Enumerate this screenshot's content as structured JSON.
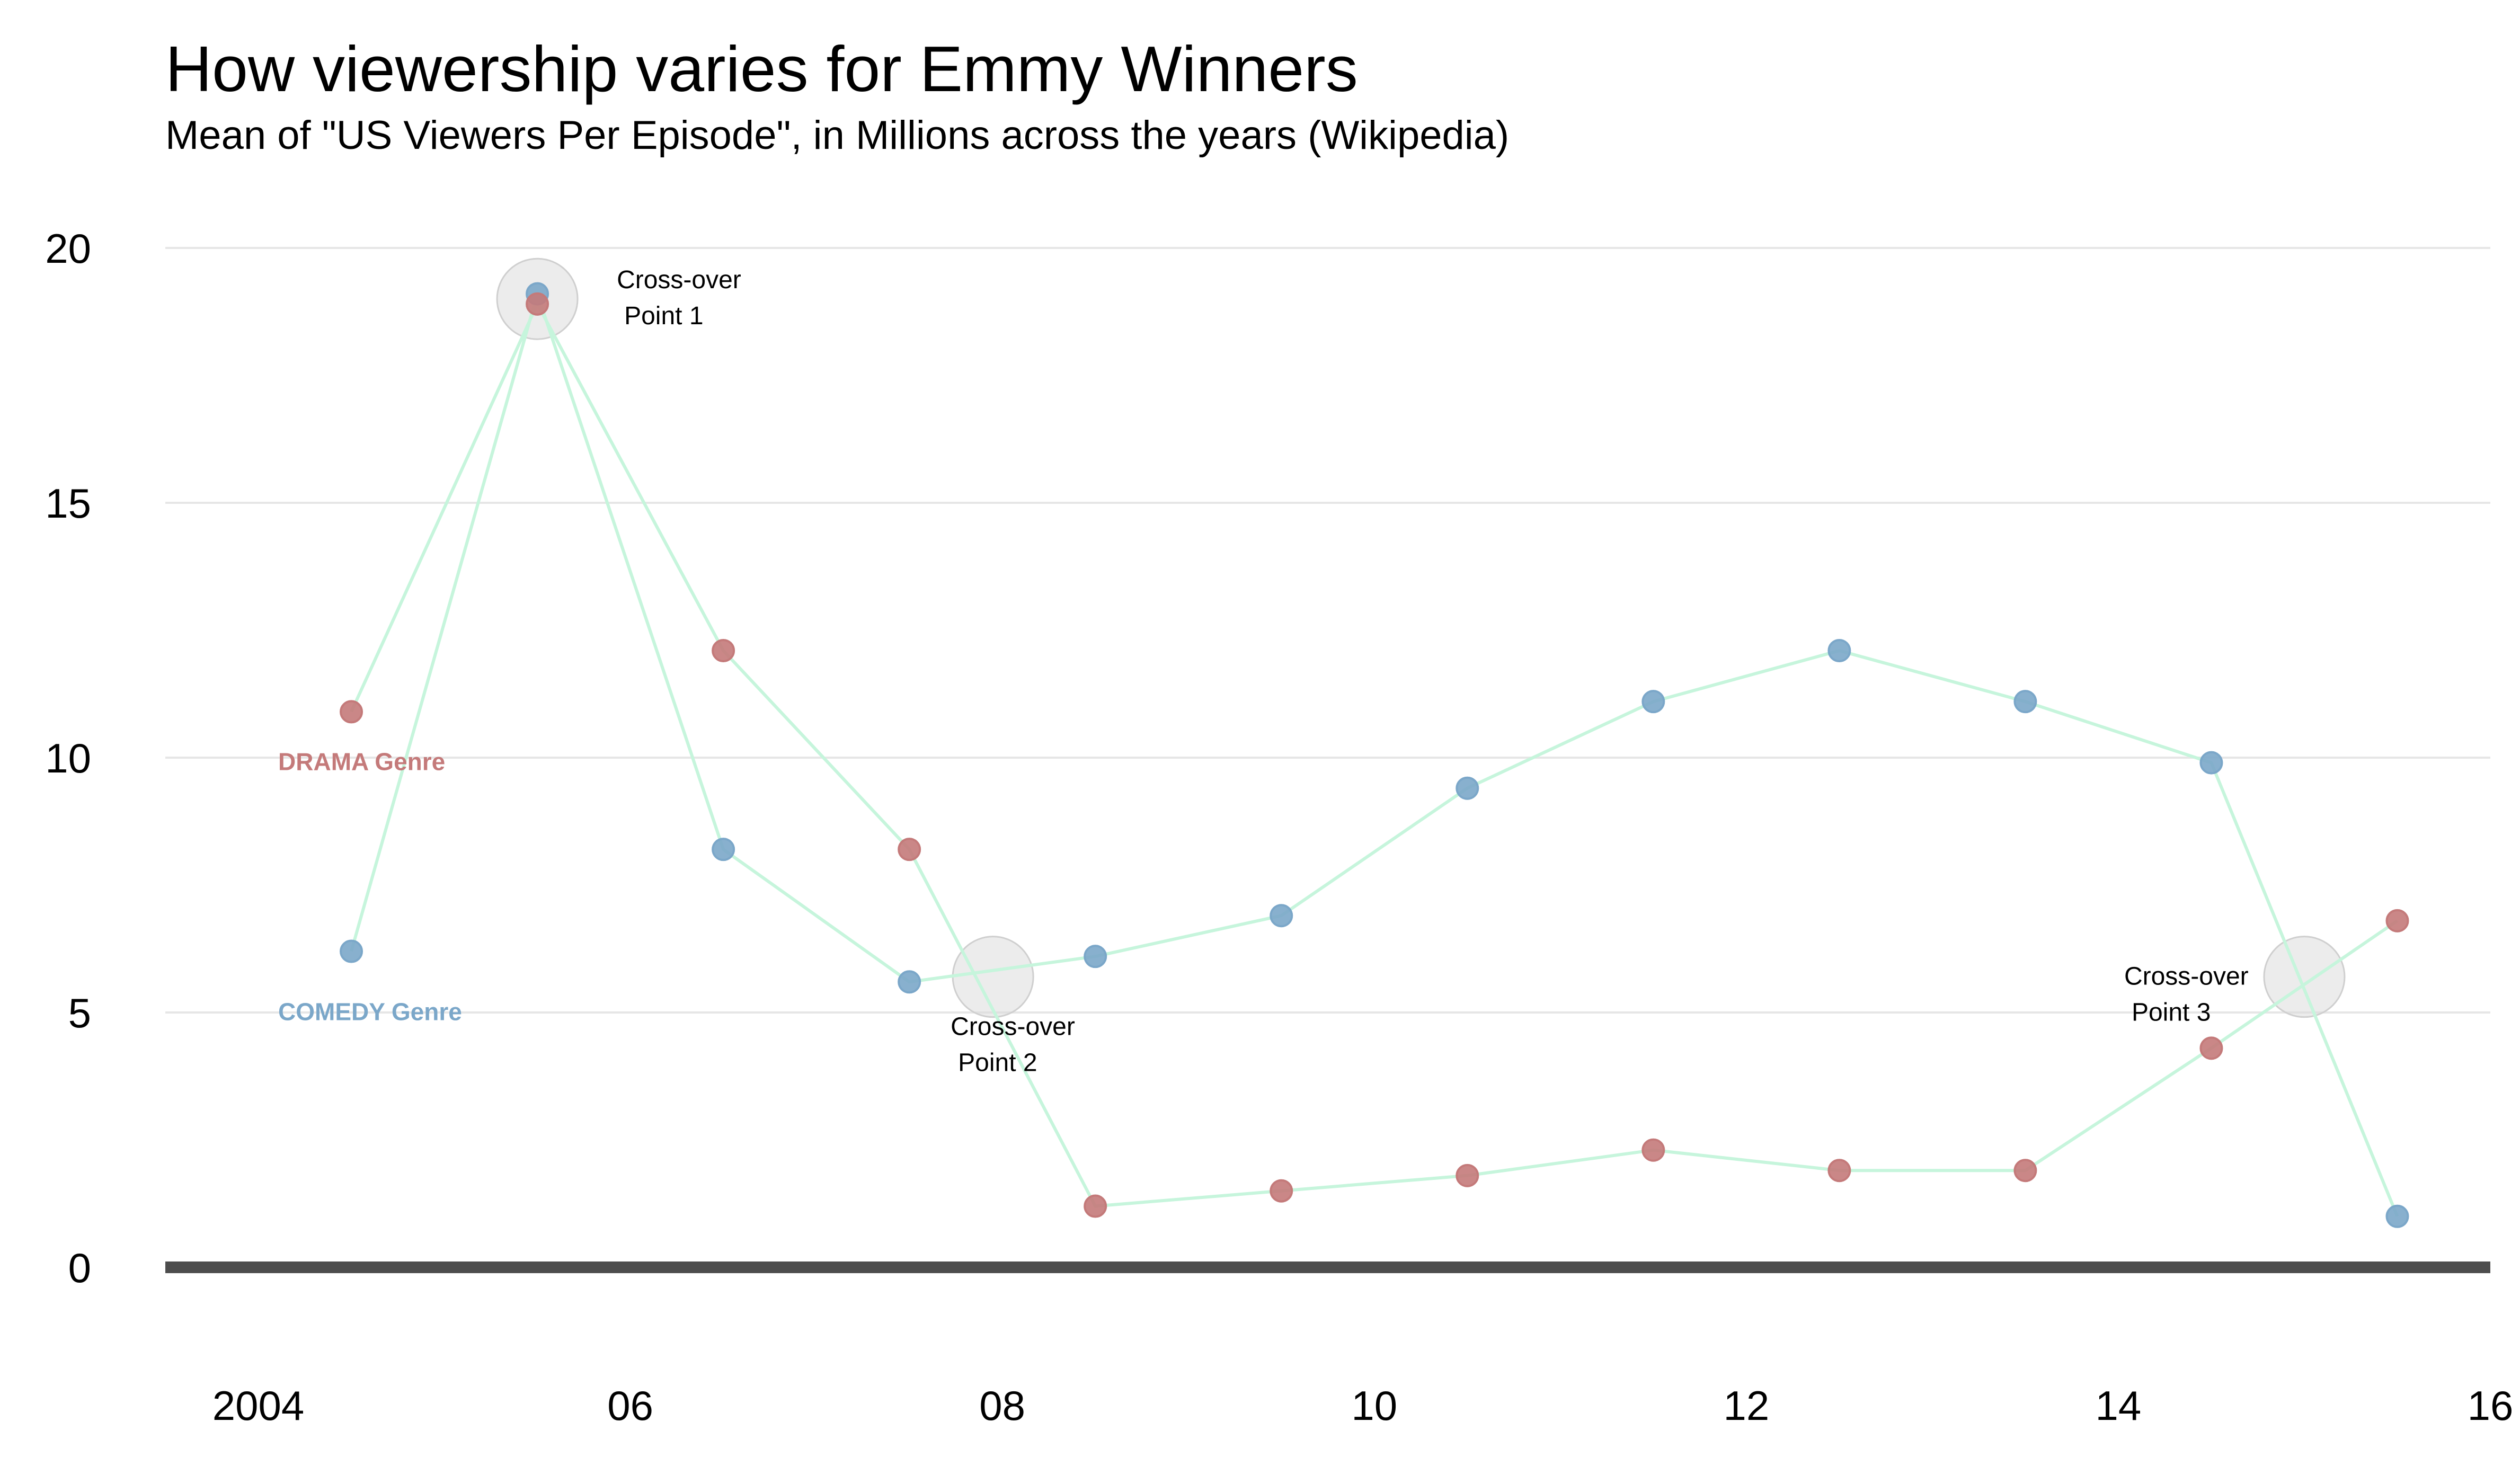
{
  "chart_data": {
    "type": "line",
    "title": "How viewership varies for Emmy Winners",
    "subtitle": "Mean of \"US Viewers Per Episode\", in Millions across the years (Wikipedia)",
    "xlabel": "",
    "ylabel": "",
    "xlim": [
      2003.5,
      2016
    ],
    "ylim": [
      0,
      20
    ],
    "x_ticks": [
      2004,
      2006,
      2008,
      2010,
      2012,
      2014,
      2016
    ],
    "x_tick_labels": [
      "2004",
      "06",
      "08",
      "10",
      "12",
      "14",
      "16"
    ],
    "y_ticks": [
      0,
      5,
      10,
      15,
      20
    ],
    "y_tick_labels": [
      "0",
      "5",
      "10",
      "15",
      "20"
    ],
    "grid": "horizontal",
    "line_color": "#c6f5dc",
    "series": [
      {
        "name": "DRAMA Genre",
        "color": "#c47a7a",
        "x": [
          2004.5,
          2005.5,
          2006.5,
          2007.5,
          2008.5,
          2009.5,
          2010.5,
          2011.5,
          2012.5,
          2013.5,
          2014.5,
          2015.5
        ],
        "values": [
          10.9,
          18.9,
          12.1,
          8.2,
          1.2,
          1.5,
          1.8,
          2.3,
          1.9,
          1.9,
          4.3,
          6.8
        ]
      },
      {
        "name": "COMEDY Genre",
        "color": "#7ba7c9",
        "x": [
          2004.5,
          2005.5,
          2006.5,
          2007.5,
          2008.5,
          2009.5,
          2010.5,
          2011.5,
          2012.5,
          2013.5,
          2014.5,
          2015.5
        ],
        "values": [
          6.2,
          19.1,
          8.2,
          5.6,
          6.1,
          6.9,
          9.4,
          11.1,
          12.1,
          11.1,
          9.9,
          1.0
        ]
      }
    ],
    "annotations": [
      {
        "line1": "Cross-over",
        "line2": "Point 1",
        "x": 2005.5,
        "y": 19.0,
        "placement": "right-above"
      },
      {
        "line1": "Cross-over",
        "line2": "Point 2",
        "x": 2007.95,
        "y": 5.7,
        "placement": "below"
      },
      {
        "line1": "Cross-over",
        "line2": "Point 3",
        "x": 2015.0,
        "y": 5.7,
        "placement": "left"
      }
    ]
  }
}
